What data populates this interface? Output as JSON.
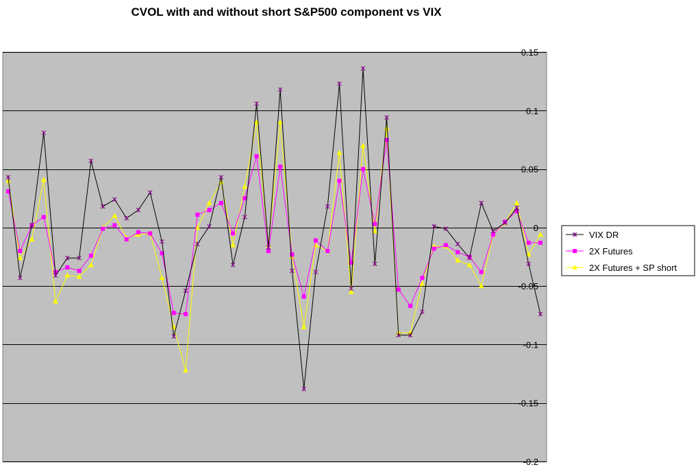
{
  "chart_data": {
    "type": "line",
    "title": "CVOL with and without short S&P500 component vs VIX",
    "xlabel": "",
    "ylabel": "",
    "ylim": [
      -0.2,
      0.15
    ],
    "yticks": [
      0.15,
      0.1,
      0.05,
      0,
      -0.05,
      -0.1,
      -0.15,
      -0.2
    ],
    "ytick_labels": [
      "0.15",
      "0.1",
      "0.05",
      "0",
      "-0.05",
      "-0.1",
      "-0.15",
      "-0.2"
    ],
    "grid": true,
    "legend_position": "right",
    "background_color": "#c0c0c0",
    "series": [
      {
        "name": "VIX DR",
        "color": "#000000",
        "marker": "star",
        "values": [
          0.043,
          -0.043,
          0.002,
          0.081,
          -0.041,
          -0.026,
          -0.026,
          0.057,
          0.018,
          0.024,
          0.008,
          0.015,
          0.03,
          -0.012,
          -0.093,
          -0.054,
          -0.014,
          0.001,
          0.043,
          -0.032,
          0.009,
          0.106,
          -0.017,
          0.118,
          -0.037,
          -0.138,
          -0.038,
          0.018,
          0.123,
          -0.052,
          0.136,
          -0.031,
          0.094,
          -0.092,
          -0.092,
          -0.072,
          0.001,
          -0.001,
          -0.014,
          -0.026,
          0.021,
          -0.003,
          0.004,
          0.017,
          -0.031,
          -0.074
        ]
      },
      {
        "name": "2X Futures",
        "color": "#ff00ff",
        "marker": "square",
        "values": [
          0.031,
          -0.02,
          0.002,
          0.009,
          -0.038,
          -0.034,
          -0.037,
          -0.024,
          -0.001,
          0.002,
          -0.01,
          -0.004,
          -0.005,
          -0.022,
          -0.073,
          -0.074,
          0.011,
          0.015,
          0.021,
          -0.005,
          0.025,
          0.061,
          -0.02,
          0.052,
          -0.023,
          -0.059,
          -0.011,
          -0.02,
          0.04,
          -0.03,
          0.05,
          0.003,
          0.075,
          -0.053,
          -0.067,
          -0.043,
          -0.018,
          -0.015,
          -0.021,
          -0.025,
          -0.038,
          -0.006,
          0.005,
          0.014,
          -0.013,
          -0.013
        ]
      },
      {
        "name": "2X Futures + SP short",
        "color": "#ffff00",
        "marker": "triangle",
        "values": [
          0.04,
          -0.026,
          -0.01,
          0.041,
          -0.063,
          -0.041,
          -0.042,
          -0.032,
          0.0,
          0.01,
          -0.009,
          -0.006,
          -0.005,
          -0.043,
          -0.085,
          -0.122,
          0.0,
          0.021,
          0.039,
          -0.015,
          0.035,
          0.09,
          -0.015,
          0.09,
          -0.025,
          -0.085,
          -0.015,
          -0.02,
          0.064,
          -0.055,
          0.07,
          -0.003,
          0.085,
          -0.09,
          -0.09,
          -0.048,
          -0.016,
          -0.016,
          -0.028,
          -0.032,
          -0.05,
          -0.006,
          0.004,
          0.021,
          -0.023,
          -0.006
        ]
      }
    ]
  }
}
